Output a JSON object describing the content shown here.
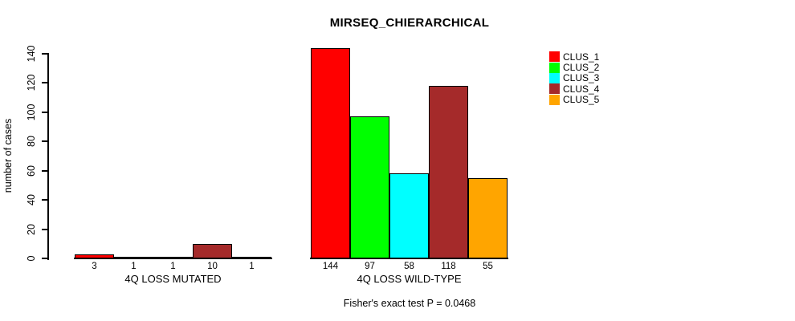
{
  "chart_data": {
    "type": "bar",
    "title": "MIRSEQ_CHIERARCHICAL",
    "ylabel": "number of cases",
    "ylim": [
      0,
      140
    ],
    "yticks": [
      0,
      20,
      40,
      60,
      80,
      100,
      120,
      140
    ],
    "categories": [
      "CLUS_1",
      "CLUS_2",
      "CLUS_3",
      "CLUS_4",
      "CLUS_5"
    ],
    "colors": [
      "#FF0000",
      "#00FF00",
      "#00FFFF",
      "#A52A2A",
      "#FFA500"
    ],
    "groups": [
      {
        "label": "4Q LOSS MUTATED",
        "values": [
          3,
          1,
          1,
          10,
          1
        ]
      },
      {
        "label": "4Q LOSS WILD-TYPE",
        "values": [
          144,
          97,
          58,
          118,
          55
        ]
      }
    ],
    "annotation": "Fisher's exact test P = 0.0468",
    "legend_position": "right",
    "grid": false
  },
  "legend": {
    "items": [
      {
        "label": "CLUS_1",
        "color": "#FF0000"
      },
      {
        "label": "CLUS_2",
        "color": "#00FF00"
      },
      {
        "label": "CLUS_3",
        "color": "#00FFFF"
      },
      {
        "label": "CLUS_4",
        "color": "#A52A2A"
      },
      {
        "label": "CLUS_5",
        "color": "#FFA500"
      }
    ]
  }
}
